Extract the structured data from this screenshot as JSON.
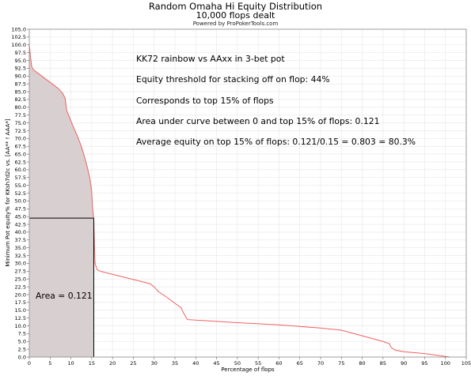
{
  "chart_data": {
    "type": "area",
    "title": "Random Omaha Hi Equity Distribution",
    "subtitle": "10,000 flops dealt",
    "credit": "Powered by ProPokerTools.com",
    "xlabel": "Percentage of flops",
    "ylabel": "Minimum Pot equity% for KKsh7d2c vs. [AA** ! AAA*]",
    "xlim": [
      0,
      105
    ],
    "ylim": [
      0,
      105
    ],
    "xticks": [
      0,
      5,
      10,
      15,
      20,
      25,
      30,
      35,
      40,
      45,
      50,
      55,
      60,
      65,
      70,
      75,
      80,
      85,
      90,
      95,
      100,
      105
    ],
    "yticks": [
      0,
      2.5,
      5,
      7.5,
      10,
      12.5,
      15,
      17.5,
      20,
      22.5,
      25,
      27.5,
      30,
      32.5,
      35,
      37.5,
      40,
      42.5,
      45,
      47.5,
      50,
      52.5,
      55,
      57.5,
      60,
      62.5,
      65,
      67.5,
      70,
      72.5,
      75,
      77.5,
      80,
      82.5,
      85,
      87.5,
      90,
      92.5,
      95,
      97.5,
      100,
      102.5,
      105
    ],
    "grid": true,
    "line_color": "#f06060",
    "fill_color": "#d8cfd0",
    "series": [
      {
        "x": [
          0,
          0.3,
          0.6,
          1,
          3,
          5,
          7,
          8,
          8.6,
          9,
          9.6,
          10.5,
          11.5,
          12.5,
          13.3,
          14,
          14.6,
          15,
          15.2,
          15.5,
          15.8,
          16.3,
          17,
          20,
          23,
          26,
          29,
          30,
          31,
          33,
          35,
          36.5,
          37,
          38,
          50,
          60,
          70,
          75,
          80,
          85,
          86.5,
          87,
          88,
          90,
          95,
          100,
          101
        ],
        "y": [
          100,
          96,
          93,
          92,
          90,
          88,
          86,
          84.5,
          83,
          79,
          77,
          74,
          71,
          67.5,
          64,
          60.5,
          57,
          53,
          48,
          44,
          30,
          28,
          27.5,
          26.5,
          25.5,
          24.5,
          23.5,
          22.5,
          21,
          19.2,
          17.2,
          15.8,
          14.3,
          12,
          11,
          10.3,
          9.3,
          8.6,
          6.8,
          5,
          4.3,
          3,
          2.2,
          1.7,
          1.1,
          0.2,
          0
        ]
      }
    ],
    "threshold": {
      "x": 15.5,
      "y": 44.5
    },
    "annotations": [
      "KK72 rainbow vs AAxx in 3-bet pot",
      "Equity threshold for stacking off on flop: 44%",
      "Corresponds to top 15% of flops",
      "Area under curve between 0 and top 15% of flops: 0.121",
      "Average equity on top 15% of flops: 0.121/0.15 = 0.803 = 80.3%"
    ],
    "area_label": "Area = 0.121"
  }
}
